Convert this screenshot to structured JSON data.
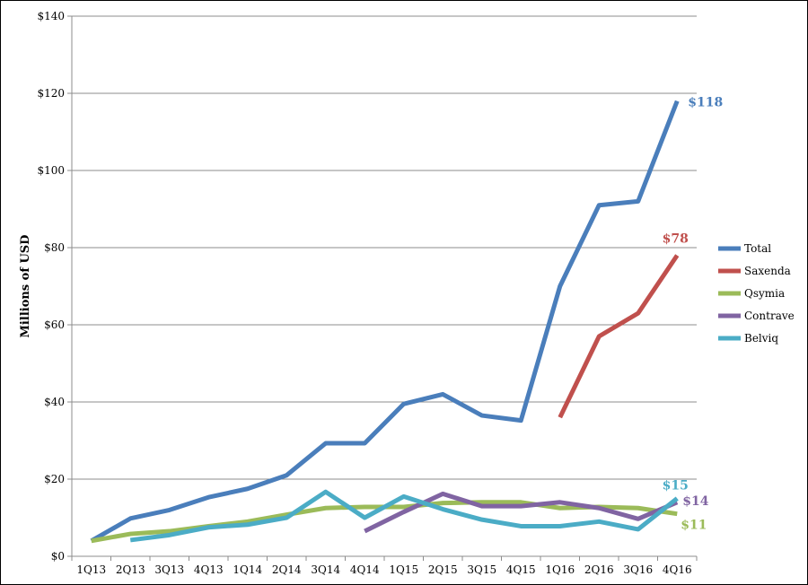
{
  "chart_data": {
    "type": "line",
    "title": "",
    "xlabel": "",
    "ylabel": "Millions of USD",
    "ylim": [
      0,
      140
    ],
    "ytick_values": [
      0,
      20,
      40,
      60,
      80,
      100,
      120,
      140
    ],
    "ytick_labels": [
      "$0",
      "$20",
      "$40",
      "$60",
      "$80",
      "$100",
      "$120",
      "$140"
    ],
    "grid": true,
    "legend_position": "right",
    "categories": [
      "1Q13",
      "2Q13",
      "3Q13",
      "4Q13",
      "1Q14",
      "2Q14",
      "3Q14",
      "4Q14",
      "1Q15",
      "2Q15",
      "3Q15",
      "4Q15",
      "1Q16",
      "2Q16",
      "3Q16",
      "4Q16"
    ],
    "series": [
      {
        "name": "Total",
        "color": "#4a7ebb",
        "values": [
          4,
          9.8,
          12,
          15.3,
          17.5,
          21,
          29.3,
          29.3,
          39.5,
          42,
          36.5,
          35.2,
          70,
          91,
          92,
          118
        ]
      },
      {
        "name": "Saxenda",
        "color": "#c0504d",
        "values": [
          null,
          null,
          null,
          null,
          null,
          null,
          null,
          null,
          null,
          null,
          null,
          null,
          36,
          57,
          63,
          78
        ]
      },
      {
        "name": "Qsymia",
        "color": "#9bbb59",
        "values": [
          4,
          5.8,
          6.5,
          7.8,
          9,
          10.8,
          12.5,
          12.8,
          12.8,
          13.8,
          14,
          14,
          12.5,
          12.8,
          12.5,
          11
        ]
      },
      {
        "name": "Contrave",
        "color": "#8064a2",
        "values": [
          null,
          null,
          null,
          null,
          null,
          null,
          null,
          6.5,
          11.5,
          16.2,
          13,
          13,
          14,
          12.5,
          9.7,
          14
        ]
      },
      {
        "name": "Belviq",
        "color": "#4bacc6",
        "values": [
          null,
          4.2,
          5.5,
          7.5,
          8.2,
          10,
          16.7,
          10,
          15.5,
          12.2,
          9.5,
          7.8,
          7.8,
          9,
          7,
          15
        ]
      }
    ],
    "end_labels": [
      {
        "series": "Total",
        "text": "$118"
      },
      {
        "series": "Saxenda",
        "text": "$78"
      },
      {
        "series": "Belviq",
        "text": "$15"
      },
      {
        "series": "Contrave",
        "text": "$14"
      },
      {
        "series": "Qsymia",
        "text": "$11"
      }
    ]
  }
}
